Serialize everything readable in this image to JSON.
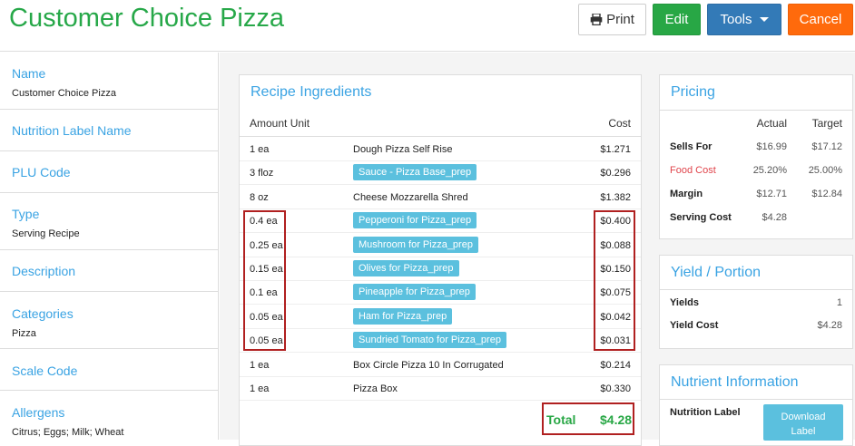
{
  "header": {
    "title": "Customer Choice Pizza",
    "print_label": "Print",
    "edit_label": "Edit",
    "tools_label": "Tools",
    "cancel_label": "Cancel"
  },
  "sidebar": {
    "fields": [
      {
        "label": "Name",
        "value": "Customer Choice Pizza"
      },
      {
        "label": "Nutrition Label Name",
        "value": ""
      },
      {
        "label": "PLU Code",
        "value": ""
      },
      {
        "label": "Type",
        "value": "Serving Recipe"
      },
      {
        "label": "Description",
        "value": ""
      },
      {
        "label": "Categories",
        "value": "Pizza"
      },
      {
        "label": "Scale Code",
        "value": ""
      },
      {
        "label": "Allergens",
        "value": "Citrus; Eggs; Milk; Wheat"
      }
    ]
  },
  "ingredients": {
    "title": "Recipe Ingredients",
    "col_amount": "Amount Unit",
    "col_cost": "Cost",
    "rows": [
      {
        "amount": "1 ea",
        "name": "Dough Pizza Self Rise",
        "cost": "$1.271",
        "chip": false
      },
      {
        "amount": "3 floz",
        "name": "Sauce - Pizza Base_prep",
        "cost": "$0.296",
        "chip": true
      },
      {
        "amount": "8 oz",
        "name": "Cheese Mozzarella Shred",
        "cost": "$1.382",
        "chip": false
      },
      {
        "amount": "0.4 ea",
        "name": "Pepperoni for Pizza_prep",
        "cost": "$0.400",
        "chip": true
      },
      {
        "amount": "0.25 ea",
        "name": "Mushroom for Pizza_prep",
        "cost": "$0.088",
        "chip": true
      },
      {
        "amount": "0.15 ea",
        "name": "Olives for Pizza_prep",
        "cost": "$0.150",
        "chip": true
      },
      {
        "amount": "0.1 ea",
        "name": "Pineapple for Pizza_prep",
        "cost": "$0.075",
        "chip": true
      },
      {
        "amount": "0.05 ea",
        "name": "Ham for Pizza_prep",
        "cost": "$0.042",
        "chip": true
      },
      {
        "amount": "0.05 ea",
        "name": "Sundried Tomato for Pizza_prep",
        "cost": "$0.031",
        "chip": true
      },
      {
        "amount": "1 ea",
        "name": "Box Circle Pizza 10 In Corrugated",
        "cost": "$0.214",
        "chip": false
      },
      {
        "amount": "1 ea",
        "name": "Pizza Box",
        "cost": "$0.330",
        "chip": false
      }
    ],
    "total_label": "Total",
    "total_value": "$4.28"
  },
  "pricing": {
    "title": "Pricing",
    "col_actual": "Actual",
    "col_target": "Target",
    "rows": [
      {
        "label": "Sells For",
        "actual": "$16.99",
        "target": "$17.12"
      },
      {
        "label": "Food Cost",
        "actual": "25.20%",
        "target": "25.00%"
      },
      {
        "label": "Margin",
        "actual": "$12.71",
        "target": "$12.84"
      },
      {
        "label": "Serving Cost",
        "actual": "$4.28",
        "target": ""
      }
    ],
    "food_cost_color": "#e0444b"
  },
  "yield": {
    "title": "Yield / Portion",
    "rows": [
      {
        "label": "Yields",
        "value": "1"
      },
      {
        "label": "Yield Cost",
        "value": "$4.28"
      }
    ]
  },
  "nutrient": {
    "title": "Nutrient Information",
    "label": "Nutrition Label",
    "download_line1": "Download",
    "download_line2": "Label"
  },
  "colors": {
    "title_green": "#27a849",
    "link_blue": "#3aa3e3",
    "chip_blue": "#5bc0de",
    "highlight_red": "#b02020"
  }
}
